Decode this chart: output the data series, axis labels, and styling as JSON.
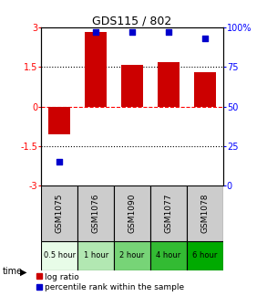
{
  "title": "GDS115 / 802",
  "samples": [
    "GSM1075",
    "GSM1076",
    "GSM1090",
    "GSM1077",
    "GSM1078"
  ],
  "time_labels": [
    "0.5 hour",
    "1 hour",
    "2 hour",
    "4 hour",
    "6 hour"
  ],
  "log_ratio": [
    -1.05,
    2.82,
    1.6,
    1.68,
    1.3
  ],
  "percentile": [
    15,
    97,
    97,
    97,
    93
  ],
  "ylim": [
    -3,
    3
  ],
  "yticks_left": [
    -3,
    -1.5,
    0,
    1.5,
    3
  ],
  "yticks_right": [
    0,
    25,
    50,
    75,
    100
  ],
  "bar_color": "#cc0000",
  "dot_color": "#0000cc",
  "time_colors": [
    "#e8fce8",
    "#b2e8b2",
    "#77d477",
    "#33bb33",
    "#00aa00"
  ],
  "sample_bg": "#cccccc",
  "legend_bar_label": "log ratio",
  "legend_dot_label": "percentile rank within the sample",
  "time_label": "time"
}
